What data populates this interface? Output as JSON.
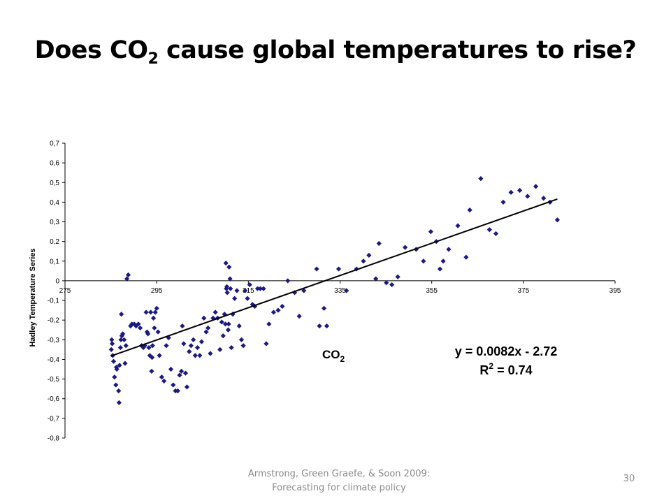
{
  "slide": {
    "title_main": "Does CO",
    "title_sub": "2",
    "title_rest": " cause global temperatures to rise?",
    "footer_line1": "Armstrong, Green Graefe, & Soon 2009:",
    "footer_line2": "Forecasting for climate policy",
    "page_number": "30"
  },
  "colors": {
    "marker": "#1a1a80",
    "trendline": "#000000",
    "axis": "#000000",
    "footer_text": "#8a8a8a"
  },
  "chart_data": {
    "type": "scatter",
    "title": "",
    "xlabel_main": "CO",
    "xlabel_sub": "2",
    "ylabel": "Hadley Temperature Series",
    "xlim": [
      275,
      395
    ],
    "ylim": [
      -0.8,
      0.7
    ],
    "x_ticks": [
      275,
      295,
      315,
      335,
      355,
      375,
      395
    ],
    "x_tick_labels": [
      "275",
      "295",
      "315",
      "335",
      "355",
      "375",
      "395"
    ],
    "y_ticks": [
      0.7,
      0.6,
      0.5,
      0.4,
      0.3,
      0.2,
      0.1,
      0,
      -0.1,
      -0.2,
      -0.3,
      -0.4,
      -0.5,
      -0.6,
      -0.7,
      -0.8
    ],
    "y_tick_labels": [
      "0,7",
      "0,6",
      "0,5",
      "0,4",
      "0,3",
      "0,2",
      "0,1",
      "0",
      "-0,1",
      "-0,2",
      "-0,3",
      "-0,4",
      "-0,5",
      "-0,6",
      "-0,7",
      "-0,8"
    ],
    "grid": false,
    "marker": "diamond",
    "points": [
      [
        285.2,
        -0.3
      ],
      [
        285.3,
        -0.32
      ],
      [
        285.1,
        -0.35
      ],
      [
        285.4,
        -0.38
      ],
      [
        285.6,
        -0.41
      ],
      [
        285.8,
        -0.49
      ],
      [
        286.1,
        -0.53
      ],
      [
        286.2,
        -0.44
      ],
      [
        286.3,
        -0.45
      ],
      [
        286.7,
        -0.56
      ],
      [
        286.8,
        -0.62
      ],
      [
        286.9,
        -0.43
      ],
      [
        287.1,
        -0.34
      ],
      [
        287.2,
        -0.3
      ],
      [
        287.3,
        -0.17
      ],
      [
        287.4,
        -0.28
      ],
      [
        287.6,
        -0.27
      ],
      [
        287.9,
        -0.3
      ],
      [
        288.1,
        -0.42
      ],
      [
        288.3,
        -0.33
      ],
      [
        288.5,
        0.01
      ],
      [
        288.8,
        0.03
      ],
      [
        289.3,
        -0.23
      ],
      [
        289.6,
        -0.22
      ],
      [
        290.1,
        -0.22
      ],
      [
        290.5,
        -0.23
      ],
      [
        291.0,
        -0.22
      ],
      [
        291.4,
        -0.24
      ],
      [
        291.7,
        -0.33
      ],
      [
        292.1,
        -0.34
      ],
      [
        292.4,
        -0.33
      ],
      [
        292.7,
        -0.16
      ],
      [
        292.9,
        -0.26
      ],
      [
        293.1,
        -0.27
      ],
      [
        293.3,
        -0.34
      ],
      [
        293.5,
        -0.38
      ],
      [
        293.7,
        -0.16
      ],
      [
        293.9,
        -0.46
      ],
      [
        294.0,
        -0.39
      ],
      [
        294.1,
        -0.33
      ],
      [
        294.3,
        -0.19
      ],
      [
        294.5,
        -0.24
      ],
      [
        294.7,
        -0.16
      ],
      [
        295.0,
        -0.14
      ],
      [
        295.3,
        -0.26
      ],
      [
        295.6,
        -0.38
      ],
      [
        296.1,
        -0.49
      ],
      [
        296.6,
        -0.51
      ],
      [
        297.1,
        -0.33
      ],
      [
        297.6,
        -0.29
      ],
      [
        298.1,
        -0.45
      ],
      [
        298.6,
        -0.53
      ],
      [
        299.1,
        -0.56
      ],
      [
        299.6,
        -0.56
      ],
      [
        300.0,
        -0.48
      ],
      [
        300.4,
        -0.46
      ],
      [
        300.6,
        -0.23
      ],
      [
        300.9,
        -0.32
      ],
      [
        301.3,
        -0.47
      ],
      [
        301.6,
        -0.54
      ],
      [
        302.1,
        -0.36
      ],
      [
        302.5,
        -0.33
      ],
      [
        303.0,
        -0.3
      ],
      [
        303.4,
        -0.38
      ],
      [
        303.9,
        -0.34
      ],
      [
        304.4,
        -0.38
      ],
      [
        304.8,
        -0.31
      ],
      [
        305.3,
        -0.19
      ],
      [
        305.8,
        -0.26
      ],
      [
        306.2,
        -0.24
      ],
      [
        306.7,
        -0.37
      ],
      [
        307.3,
        -0.19
      ],
      [
        307.8,
        -0.16
      ],
      [
        308.3,
        -0.19
      ],
      [
        308.8,
        -0.35
      ],
      [
        309.2,
        -0.21
      ],
      [
        309.5,
        -0.28
      ],
      [
        309.8,
        -0.17
      ],
      [
        310.0,
        -0.22
      ],
      [
        310.1,
        0.09
      ],
      [
        310.2,
        -0.04
      ],
      [
        310.3,
        -0.03
      ],
      [
        310.4,
        -0.06
      ],
      [
        310.6,
        -0.25
      ],
      [
        310.7,
        -0.22
      ],
      [
        310.8,
        0.07
      ],
      [
        311.0,
        0.01
      ],
      [
        311.1,
        -0.04
      ],
      [
        311.3,
        -0.34
      ],
      [
        311.6,
        -0.17
      ],
      [
        312.0,
        -0.09
      ],
      [
        312.5,
        -0.05
      ],
      [
        313.0,
        -0.23
      ],
      [
        313.5,
        -0.3
      ],
      [
        313.9,
        -0.33
      ],
      [
        314.3,
        -0.05
      ],
      [
        314.8,
        -0.09
      ],
      [
        315.3,
        -0.02
      ],
      [
        315.9,
        -0.12
      ],
      [
        316.4,
        -0.13
      ],
      [
        317.0,
        -0.04
      ],
      [
        317.6,
        -0.04
      ],
      [
        318.3,
        -0.04
      ],
      [
        318.9,
        -0.32
      ],
      [
        319.5,
        -0.22
      ],
      [
        320.5,
        -0.16
      ],
      [
        321.5,
        -0.15
      ],
      [
        322.4,
        -0.13
      ],
      [
        323.6,
        0.0
      ],
      [
        325.1,
        -0.06
      ],
      [
        326.1,
        -0.18
      ],
      [
        327.1,
        -0.05
      ],
      [
        329.9,
        0.06
      ],
      [
        330.5,
        -0.23
      ],
      [
        331.5,
        -0.14
      ],
      [
        332.1,
        -0.23
      ],
      [
        334.7,
        0.06
      ],
      [
        336.4,
        -0.05
      ],
      [
        338.6,
        0.06
      ],
      [
        340.1,
        0.1
      ],
      [
        341.3,
        0.13
      ],
      [
        342.8,
        0.01
      ],
      [
        343.5,
        0.19
      ],
      [
        345.1,
        -0.01
      ],
      [
        346.3,
        -0.02
      ],
      [
        347.6,
        0.02
      ],
      [
        349.2,
        0.17
      ],
      [
        351.6,
        0.16
      ],
      [
        353.2,
        0.1
      ],
      [
        354.8,
        0.25
      ],
      [
        356.0,
        0.2
      ],
      [
        356.8,
        0.06
      ],
      [
        357.5,
        0.1
      ],
      [
        358.7,
        0.16
      ],
      [
        360.7,
        0.28
      ],
      [
        362.5,
        0.12
      ],
      [
        363.3,
        0.36
      ],
      [
        365.7,
        0.52
      ],
      [
        367.6,
        0.26
      ],
      [
        369.0,
        0.24
      ],
      [
        370.6,
        0.4
      ],
      [
        372.3,
        0.45
      ],
      [
        374.2,
        0.46
      ],
      [
        375.9,
        0.43
      ],
      [
        377.7,
        0.48
      ],
      [
        379.4,
        0.42
      ],
      [
        380.8,
        0.4
      ],
      [
        382.4,
        0.31
      ]
    ],
    "trendline": {
      "slope": 0.0082,
      "intercept": -2.72,
      "x_start": 285,
      "x_end": 382.4
    },
    "annotations": {
      "equation": "y = 0.0082x - 2.72",
      "r2_prefix": "R",
      "r2_sup": "2",
      "r2_value": " = 0.74"
    }
  }
}
